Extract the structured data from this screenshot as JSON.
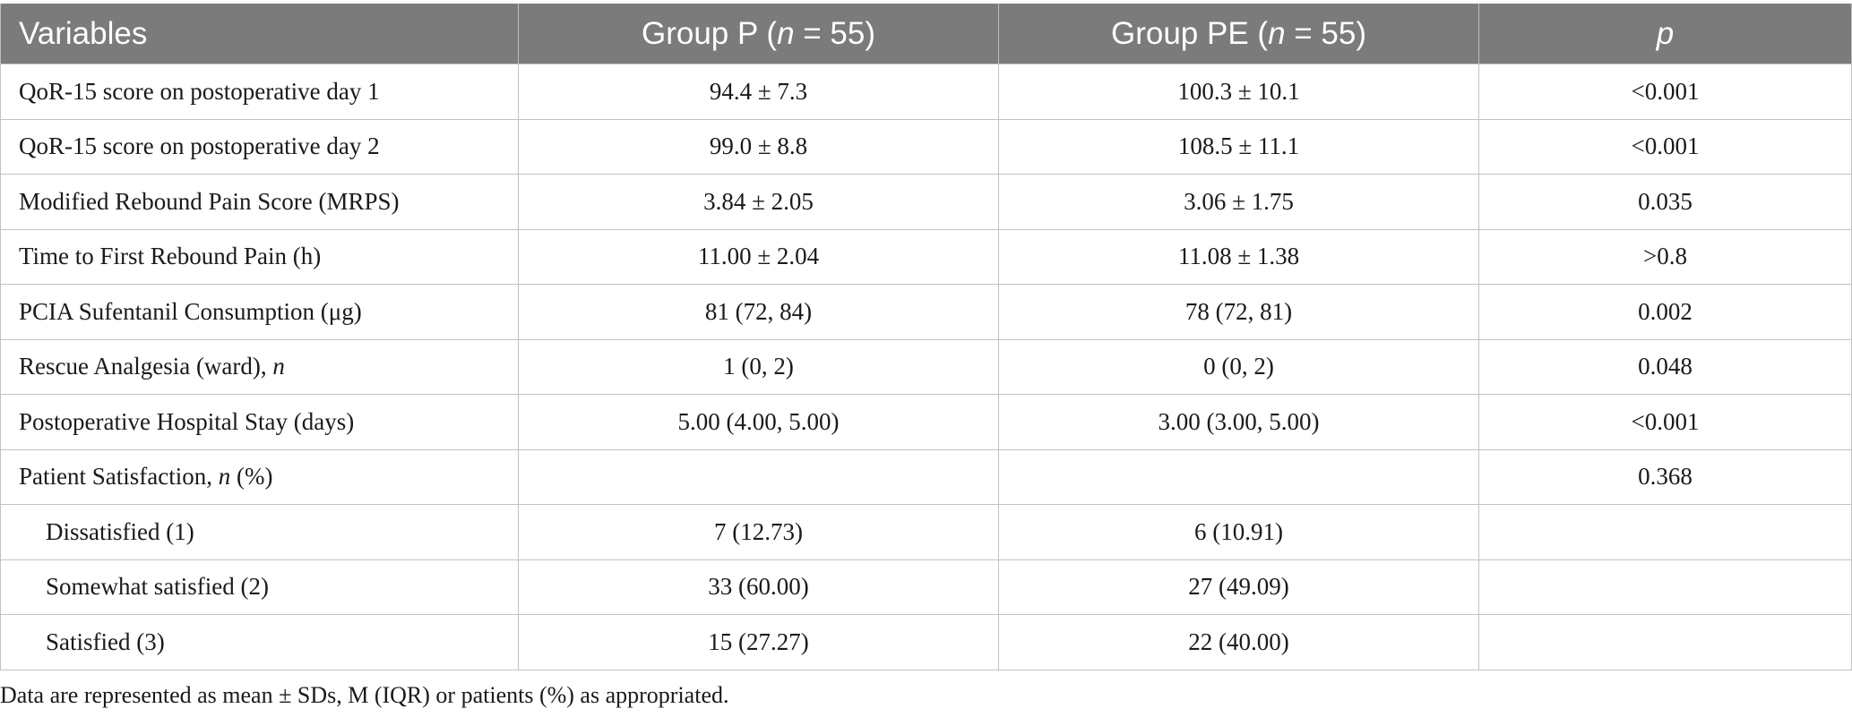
{
  "header": {
    "variables": "Variables",
    "group_p_prefix": "Group P (",
    "group_p_n": "n",
    "group_p_suffix": " = 55)",
    "group_pe_prefix": "Group PE (",
    "group_pe_n": "n",
    "group_pe_suffix": " = 55)",
    "p": "p"
  },
  "rows": [
    {
      "label": "QoR-15 score on postoperative day 1",
      "label_ital": "",
      "label_tail": "",
      "p_group": "94.4 ± 7.3",
      "pe_group": "100.3 ± 10.1",
      "p_value": "<0.001"
    },
    {
      "label": "QoR-15 score on postoperative day 2",
      "label_ital": "",
      "label_tail": "",
      "p_group": "99.0 ± 8.8",
      "pe_group": "108.5 ± 11.1",
      "p_value": "<0.001"
    },
    {
      "label": "Modified Rebound Pain Score (MRPS)",
      "label_ital": "",
      "label_tail": "",
      "p_group": "3.84 ± 2.05",
      "pe_group": "3.06 ± 1.75",
      "p_value": "0.035"
    },
    {
      "label": "Time to First Rebound Pain (h)",
      "label_ital": "",
      "label_tail": "",
      "p_group": "11.00 ± 2.04",
      "pe_group": "11.08 ± 1.38",
      "p_value": ">0.8"
    },
    {
      "label": "PCIA Sufentanil Consumption (μg)",
      "label_ital": "",
      "label_tail": "",
      "p_group": "81 (72, 84)",
      "pe_group": "78 (72, 81)",
      "p_value": "0.002"
    },
    {
      "label": "Rescue Analgesia (ward), ",
      "label_ital": "n",
      "label_tail": "",
      "p_group": "1 (0, 2)",
      "pe_group": "0 (0, 2)",
      "p_value": "0.048"
    },
    {
      "label": "Postoperative Hospital Stay (days)",
      "label_ital": "",
      "label_tail": "",
      "p_group": "5.00 (4.00, 5.00)",
      "pe_group": "3.00 (3.00, 5.00)",
      "p_value": "<0.001"
    },
    {
      "label": "Patient Satisfaction, ",
      "label_ital": "n",
      "label_tail": " (%)",
      "p_group": "",
      "pe_group": "",
      "p_value": "0.368"
    },
    {
      "label": "Dissatisfied (1)",
      "label_ital": "",
      "label_tail": "",
      "p_group": "7 (12.73)",
      "pe_group": "6 (10.91)",
      "p_value": ""
    },
    {
      "label": "Somewhat satisfied (2)",
      "label_ital": "",
      "label_tail": "",
      "p_group": "33 (60.00)",
      "pe_group": "27 (49.09)",
      "p_value": ""
    },
    {
      "label": "Satisfied (3)",
      "label_ital": "",
      "label_tail": "",
      "p_group": "15 (27.27)",
      "pe_group": "22 (40.00)",
      "p_value": ""
    }
  ],
  "footnote": "Data are represented as mean ± SDs, M (IQR) or patients (%) as appropriated.",
  "colors": {
    "header_bg": "#7b7b7b",
    "header_text": "#ffffff",
    "grid": "#c2c2c2"
  }
}
